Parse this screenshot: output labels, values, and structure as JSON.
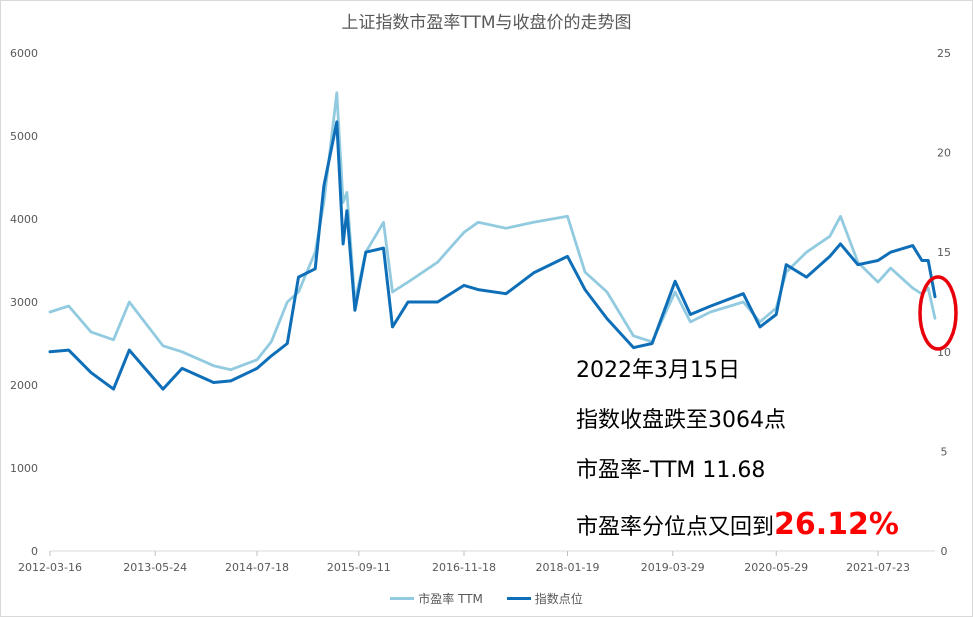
{
  "chart_data": {
    "type": "line",
    "title": "上证指数市盈率TTM与收盘价的走势图",
    "x_ticks": [
      "2012-03-16",
      "2013-05-24",
      "2014-07-18",
      "2015-09-11",
      "2016-11-18",
      "2018-01-19",
      "2019-03-29",
      "2020-05-29",
      "2021-07-23"
    ],
    "y_left_ticks": [
      0,
      1000,
      2000,
      3000,
      4000,
      5000,
      6000
    ],
    "y_right_ticks": [
      0,
      5,
      10,
      15,
      20,
      25
    ],
    "ylim_left": [
      0,
      6000
    ],
    "ylim_right": [
      0,
      25
    ],
    "xlim": [
      "2012-03-16",
      "2022-03-15"
    ],
    "series": [
      {
        "name": "市盈率 TTM",
        "axis": "right",
        "color": "#92cbe0",
        "x": [
          "2012-03-16",
          "2012-06-01",
          "2012-09-01",
          "2012-12-03",
          "2013-02-06",
          "2013-06-25",
          "2013-09-12",
          "2014-01-20",
          "2014-04-01",
          "2014-07-18",
          "2014-09-15",
          "2014-11-20",
          "2015-01-05",
          "2015-03-15",
          "2015-04-20",
          "2015-06-12",
          "2015-07-08",
          "2015-07-24",
          "2015-08-26",
          "2015-10-10",
          "2015-12-22",
          "2016-01-28",
          "2016-04-01",
          "2016-08-01",
          "2016-11-18",
          "2017-01-15",
          "2017-05-10",
          "2017-09-01",
          "2018-01-19",
          "2018-04-01",
          "2018-07-01",
          "2018-10-18",
          "2019-01-03",
          "2019-04-08",
          "2019-06-10",
          "2019-09-01",
          "2020-01-14",
          "2020-03-23",
          "2020-05-29",
          "2020-07-09",
          "2020-10-01",
          "2021-01-05",
          "2021-02-18",
          "2021-05-01",
          "2021-07-23",
          "2021-09-13",
          "2021-12-13",
          "2022-01-20",
          "2022-02-15",
          "2022-03-15"
        ],
        "values": [
          12.0,
          12.3,
          11.0,
          10.6,
          12.5,
          10.3,
          10.0,
          9.3,
          9.1,
          9.6,
          10.5,
          12.5,
          13.0,
          15.0,
          17.5,
          23.0,
          17.5,
          18.0,
          12.5,
          15.0,
          16.5,
          13.0,
          13.5,
          14.5,
          16.0,
          16.5,
          16.2,
          16.5,
          16.8,
          14.0,
          13.0,
          10.8,
          10.5,
          13.0,
          11.5,
          12.0,
          12.5,
          11.5,
          12.2,
          14.0,
          15.0,
          15.8,
          16.8,
          14.5,
          13.5,
          14.2,
          13.2,
          12.9,
          13.2,
          11.68
        ]
      },
      {
        "name": "指数点位",
        "axis": "left",
        "color": "#0e6fb8",
        "x": [
          "2012-03-16",
          "2012-06-01",
          "2012-09-01",
          "2012-12-03",
          "2013-02-06",
          "2013-06-25",
          "2013-09-12",
          "2014-01-20",
          "2014-04-01",
          "2014-07-18",
          "2014-09-15",
          "2014-11-20",
          "2015-01-05",
          "2015-03-15",
          "2015-04-20",
          "2015-06-12",
          "2015-07-08",
          "2015-07-24",
          "2015-08-26",
          "2015-10-10",
          "2015-12-22",
          "2016-01-28",
          "2016-04-01",
          "2016-08-01",
          "2016-11-18",
          "2017-01-15",
          "2017-05-10",
          "2017-09-01",
          "2018-01-19",
          "2018-04-01",
          "2018-07-01",
          "2018-10-18",
          "2019-01-03",
          "2019-04-08",
          "2019-06-10",
          "2019-09-01",
          "2020-01-14",
          "2020-03-23",
          "2020-05-29",
          "2020-07-09",
          "2020-10-01",
          "2021-01-05",
          "2021-02-18",
          "2021-05-01",
          "2021-07-23",
          "2021-09-13",
          "2021-12-13",
          "2022-01-20",
          "2022-02-15",
          "2022-03-15"
        ],
        "values": [
          2400,
          2420,
          2150,
          1950,
          2420,
          1950,
          2200,
          2030,
          2050,
          2200,
          2350,
          2500,
          3300,
          3400,
          4400,
          5170,
          3700,
          4100,
          2900,
          3600,
          3650,
          2700,
          3000,
          3000,
          3200,
          3150,
          3100,
          3350,
          3550,
          3150,
          2800,
          2450,
          2500,
          3250,
          2850,
          2950,
          3100,
          2700,
          2850,
          3450,
          3300,
          3550,
          3700,
          3450,
          3500,
          3600,
          3680,
          3500,
          3500,
          3064
        ]
      }
    ]
  },
  "annotations": {
    "line1": "2022年3月15日",
    "line2": "指数收盘跌至3064点",
    "line3": "市盈率-TTM 11.68",
    "line4_prefix": "市盈率分位点又回到",
    "line4_highlight": "26.12%"
  },
  "highlight_color": "#e8000b"
}
